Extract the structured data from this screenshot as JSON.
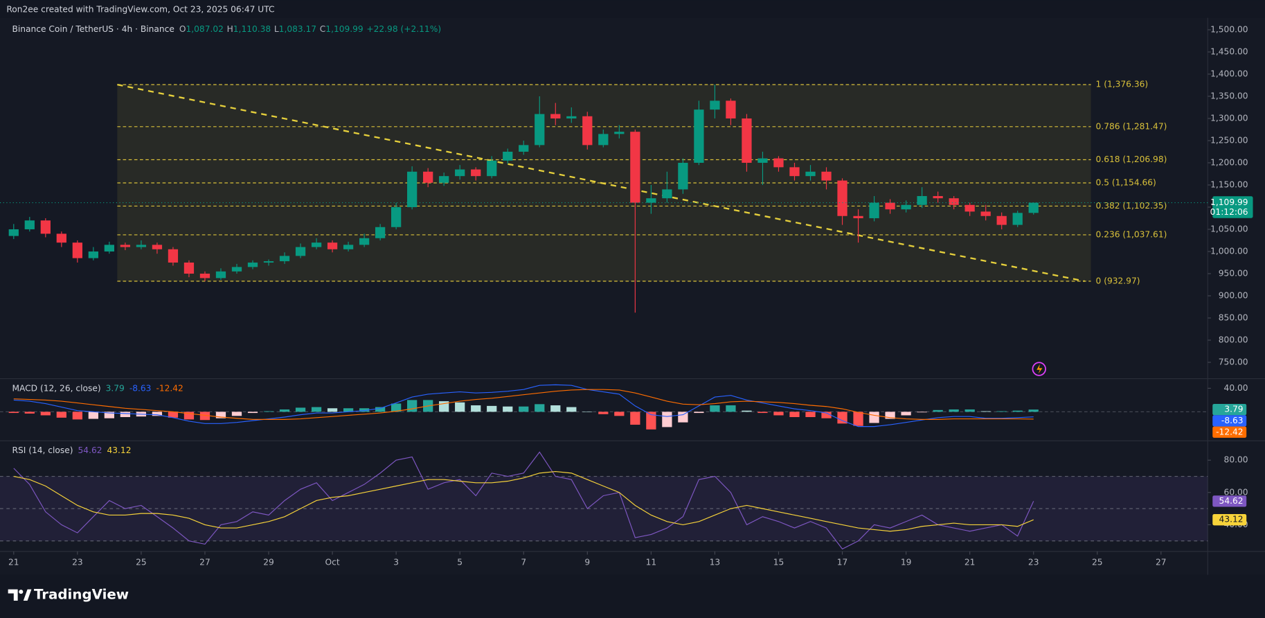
{
  "header": {
    "attribution": "Ron2ee created with TradingView.com, Oct 23, 2025 06:47 UTC",
    "symbol": "Binance Coin / TetherUS · 4h · Binance",
    "ohlc": [
      {
        "key": "O",
        "value": "1,087.02"
      },
      {
        "key": "H",
        "value": "1,110.38"
      },
      {
        "key": "L",
        "value": "1,083.17"
      },
      {
        "key": "C",
        "value": "1,109.99"
      }
    ],
    "change": "+22.98 (+2.11%)"
  },
  "chart_data": [
    {
      "type": "candlestick",
      "x": [
        0,
        0.5,
        1,
        1.5,
        2,
        2.5,
        3,
        3.5,
        4,
        4.5,
        5,
        5.5,
        6,
        6.5,
        7,
        7.5,
        8,
        8.5,
        9,
        9.5,
        10,
        10.5,
        11,
        11.5,
        12,
        12.5,
        13,
        13.5,
        14,
        14.5,
        15,
        15.5,
        16,
        16.5,
        17,
        17.5,
        18,
        18.5,
        19,
        19.5,
        20,
        20.5,
        21,
        21.5,
        22,
        22.5,
        23,
        23.5,
        24,
        24.5,
        25,
        25.5,
        26,
        26.5,
        27,
        27.5,
        28,
        28.5,
        29,
        29.5,
        30,
        30.5,
        31,
        31.5,
        32
      ],
      "open": [
        1035,
        1050,
        1070,
        1040,
        1020,
        985,
        1000,
        1015,
        1010,
        1015,
        1005,
        975,
        950,
        940,
        955,
        965,
        975,
        978,
        990,
        1010,
        1020,
        1005,
        1015,
        1030,
        1055,
        1100,
        1180,
        1155,
        1170,
        1185,
        1170,
        1205,
        1225,
        1240,
        1310,
        1300,
        1305,
        1240,
        1265,
        1270,
        1110,
        1120,
        1140,
        1200,
        1320,
        1340,
        1300,
        1200,
        1210,
        1190,
        1170,
        1180,
        1160,
        1080,
        1075,
        1110,
        1095,
        1105,
        1125,
        1120,
        1105,
        1090,
        1080,
        1060,
        1087.02
      ],
      "high": [
        1062,
        1078,
        1075,
        1045,
        1025,
        1010,
        1022,
        1020,
        1025,
        1020,
        1010,
        980,
        955,
        962,
        972,
        980,
        982,
        998,
        1018,
        1030,
        1025,
        1022,
        1040,
        1062,
        1110,
        1192,
        1188,
        1178,
        1195,
        1190,
        1215,
        1232,
        1250,
        1350,
        1335,
        1325,
        1315,
        1275,
        1285,
        1275,
        1150,
        1180,
        1210,
        1340,
        1376.36,
        1345,
        1310,
        1225,
        1215,
        1200,
        1195,
        1190,
        1165,
        1095,
        1125,
        1118,
        1115,
        1145,
        1135,
        1125,
        1110,
        1105,
        1088,
        1092,
        1110.38
      ],
      "low": [
        1028,
        1045,
        1032,
        1010,
        975,
        980,
        995,
        1003,
        1005,
        995,
        968,
        942,
        932.97,
        936,
        950,
        960,
        968,
        972,
        985,
        1005,
        998,
        1000,
        1010,
        1025,
        1050,
        1095,
        1145,
        1148,
        1162,
        1160,
        1165,
        1198,
        1218,
        1235,
        1285,
        1290,
        1230,
        1235,
        1255,
        862,
        1085,
        1110,
        1130,
        1195,
        1300,
        1285,
        1180,
        1150,
        1180,
        1160,
        1160,
        1140,
        1060,
        1020,
        1068,
        1085,
        1088,
        1098,
        1110,
        1095,
        1080,
        1070,
        1050,
        1055,
        1083.17
      ],
      "close": [
        1050,
        1070,
        1040,
        1020,
        985,
        1000,
        1015,
        1010,
        1015,
        1005,
        975,
        950,
        940,
        955,
        965,
        975,
        978,
        990,
        1010,
        1020,
        1005,
        1015,
        1030,
        1055,
        1100,
        1180,
        1155,
        1170,
        1185,
        1170,
        1205,
        1225,
        1240,
        1310,
        1300,
        1305,
        1240,
        1265,
        1270,
        1110,
        1120,
        1140,
        1200,
        1320,
        1340,
        1300,
        1200,
        1210,
        1190,
        1170,
        1180,
        1160,
        1080,
        1075,
        1110,
        1095,
        1105,
        1125,
        1120,
        1105,
        1090,
        1080,
        1060,
        1087,
        1109.99
      ],
      "up_color": "#089981",
      "down_color": "#f23645",
      "xlim": [
        -0.43,
        37.44
      ],
      "xticks": [
        {
          "value": 0,
          "label": "21"
        },
        {
          "value": 2,
          "label": "23"
        },
        {
          "value": 4,
          "label": "25"
        },
        {
          "value": 6,
          "label": "27"
        },
        {
          "value": 8,
          "label": "29"
        },
        {
          "value": 10,
          "label": "Oct"
        },
        {
          "value": 12,
          "label": "3"
        },
        {
          "value": 14,
          "label": "5"
        },
        {
          "value": 16,
          "label": "7"
        },
        {
          "value": 18,
          "label": "9"
        },
        {
          "value": 20,
          "label": "11"
        },
        {
          "value": 22,
          "label": "13"
        },
        {
          "value": 24,
          "label": "15"
        },
        {
          "value": 26,
          "label": "17"
        },
        {
          "value": 28,
          "label": "19"
        },
        {
          "value": 30,
          "label": "21"
        },
        {
          "value": 32,
          "label": "23"
        },
        {
          "value": 34,
          "label": "25"
        },
        {
          "value": 36,
          "label": "27"
        }
      ],
      "ylim": [
        715,
        1527
      ],
      "yticks": [
        {
          "value": 1500,
          "label": "1,500.00"
        },
        {
          "value": 1450,
          "label": "1,450.00"
        },
        {
          "value": 1400,
          "label": "1,400.00"
        },
        {
          "value": 1350,
          "label": "1,350.00"
        },
        {
          "value": 1300,
          "label": "1,300.00"
        },
        {
          "value": 1250,
          "label": "1,250.00"
        },
        {
          "value": 1200,
          "label": "1,200.00"
        },
        {
          "value": 1150,
          "label": "1,150.00"
        },
        {
          "value": 1100,
          "label": "1,100.00"
        },
        {
          "value": 1050,
          "label": "1,050.00"
        },
        {
          "value": 1000,
          "label": "1,000.00"
        },
        {
          "value": 950,
          "label": "950.00"
        },
        {
          "value": 900,
          "label": "900.00"
        },
        {
          "value": 850,
          "label": "850.00"
        },
        {
          "value": 800,
          "label": "800.00"
        },
        {
          "value": 750,
          "label": "750.00"
        }
      ],
      "fib": {
        "x_start": 3.25,
        "x_end": 33.8,
        "color": "#d8c03a",
        "levels": [
          {
            "value": 1376.36,
            "label": "1 (1,376.36)"
          },
          {
            "value": 1281.47,
            "label": "0.786 (1,281.47)"
          },
          {
            "value": 1206.98,
            "label": "0.618 (1,206.98)"
          },
          {
            "value": 1154.66,
            "label": "0.5 (1,154.66)"
          },
          {
            "value": 1102.35,
            "label": "0.382 (1,102.35)"
          },
          {
            "value": 1037.61,
            "label": "0.236 (1,037.61)"
          },
          {
            "value": 932.97,
            "label": "0 (932.97)"
          }
        ]
      },
      "trend_line": {
        "x": [
          3.25,
          33.6
        ],
        "y": [
          1376.36,
          932.97
        ],
        "color": "#e6d03c"
      },
      "last_price": {
        "value": 1109.99,
        "label": "1,109.99",
        "countdown": "01:12:06",
        "color": "#089981"
      }
    },
    {
      "type": "macd",
      "title": "MACD (12, 26, close)",
      "ylim": [
        -48,
        55
      ],
      "yticks": [
        {
          "value": 40,
          "label": "40.00"
        }
      ],
      "hist_colors": [
        "#26a69a",
        "#b2dfdb",
        "#ff5252",
        "#ffcdd2"
      ],
      "series": [
        {
          "kind": "histogram",
          "color": "#26a69a",
          "values": [
            -2,
            -3,
            -6,
            -10,
            -13,
            -12,
            -11,
            -9,
            -8,
            -7,
            -10,
            -13,
            -14,
            -11,
            -7,
            -2,
            1,
            4,
            7,
            8,
            6,
            6,
            6,
            8,
            14,
            20,
            20,
            18,
            16,
            11,
            10,
            9,
            9,
            13,
            11,
            8,
            0,
            -4,
            -7,
            -22,
            -30,
            -26,
            -18,
            -2,
            11,
            11,
            2,
            -2,
            -6,
            -9,
            -9,
            -11,
            -20,
            -24,
            -19,
            -12,
            -6,
            -1,
            3,
            4,
            4,
            1,
            1,
            2,
            3.79
          ]
        },
        {
          "kind": "line",
          "color": "#2962ff",
          "values": [
            20,
            18,
            14,
            8,
            2,
            0,
            -2,
            -3,
            -4,
            -5,
            -10,
            -16,
            -20,
            -20,
            -18,
            -15,
            -12,
            -9,
            -5,
            -2,
            -2,
            0,
            2,
            6,
            15,
            25,
            30,
            32,
            34,
            32,
            33,
            35,
            38,
            45,
            46,
            45,
            38,
            34,
            30,
            10,
            -5,
            -8,
            -5,
            10,
            25,
            28,
            20,
            15,
            10,
            5,
            2,
            -2,
            -15,
            -25,
            -25,
            -22,
            -18,
            -14,
            -10,
            -8,
            -8,
            -11,
            -11,
            -10,
            -8.63
          ]
        },
        {
          "kind": "line",
          "color": "#ff6d00",
          "values": [
            22,
            21,
            20,
            18,
            15,
            12,
            9,
            6,
            4,
            2,
            0,
            -3,
            -6,
            -9,
            -11,
            -13,
            -13,
            -13,
            -12,
            -10,
            -8,
            -6,
            -4,
            -2,
            1,
            5,
            10,
            14,
            18,
            21,
            23,
            26,
            29,
            32,
            35,
            37,
            38,
            38,
            37,
            32,
            25,
            18,
            13,
            12,
            14,
            17,
            18,
            17,
            16,
            14,
            11,
            9,
            5,
            -1,
            -6,
            -10,
            -12,
            -13,
            -13,
            -12,
            -12,
            -12,
            -12,
            -12,
            -12.42
          ]
        }
      ]
    },
    {
      "type": "rsi",
      "title": "RSI (14, close)",
      "ylim": [
        24,
        91
      ],
      "yticks": [
        {
          "value": 80,
          "label": "80.00"
        },
        {
          "value": 60,
          "label": "60.00"
        },
        {
          "value": 40,
          "label": "40.00"
        }
      ],
      "bands": [
        70,
        50,
        30
      ],
      "band_fill": "rgba(126,87,194,0.12)",
      "series": [
        {
          "kind": "line",
          "color": "#7e57c2",
          "values": [
            75,
            65,
            48,
            40,
            35,
            45,
            55,
            50,
            52,
            45,
            38,
            30,
            28,
            40,
            42,
            48,
            46,
            55,
            62,
            66,
            55,
            60,
            65,
            72,
            80,
            82,
            62,
            66,
            68,
            58,
            72,
            70,
            72,
            85,
            70,
            68,
            50,
            58,
            60,
            32,
            34,
            38,
            45,
            68,
            70,
            60,
            40,
            45,
            42,
            38,
            42,
            38,
            25,
            30,
            40,
            38,
            42,
            46,
            40,
            38,
            36,
            38,
            40,
            33,
            54.62
          ]
        },
        {
          "kind": "line",
          "color": "#f7d33a",
          "values": [
            70,
            68,
            64,
            58,
            52,
            48,
            46,
            46,
            47,
            47,
            46,
            44,
            40,
            38,
            38,
            40,
            42,
            45,
            50,
            55,
            57,
            58,
            60,
            62,
            64,
            66,
            68,
            68,
            67,
            66,
            66,
            67,
            69,
            72,
            73,
            72,
            68,
            64,
            60,
            52,
            46,
            42,
            40,
            42,
            46,
            50,
            52,
            50,
            48,
            46,
            44,
            42,
            40,
            38,
            37,
            36,
            37,
            39,
            40,
            41,
            40,
            40,
            40,
            39,
            43.12
          ]
        }
      ]
    }
  ],
  "footer": {
    "brand": "TradingView"
  }
}
